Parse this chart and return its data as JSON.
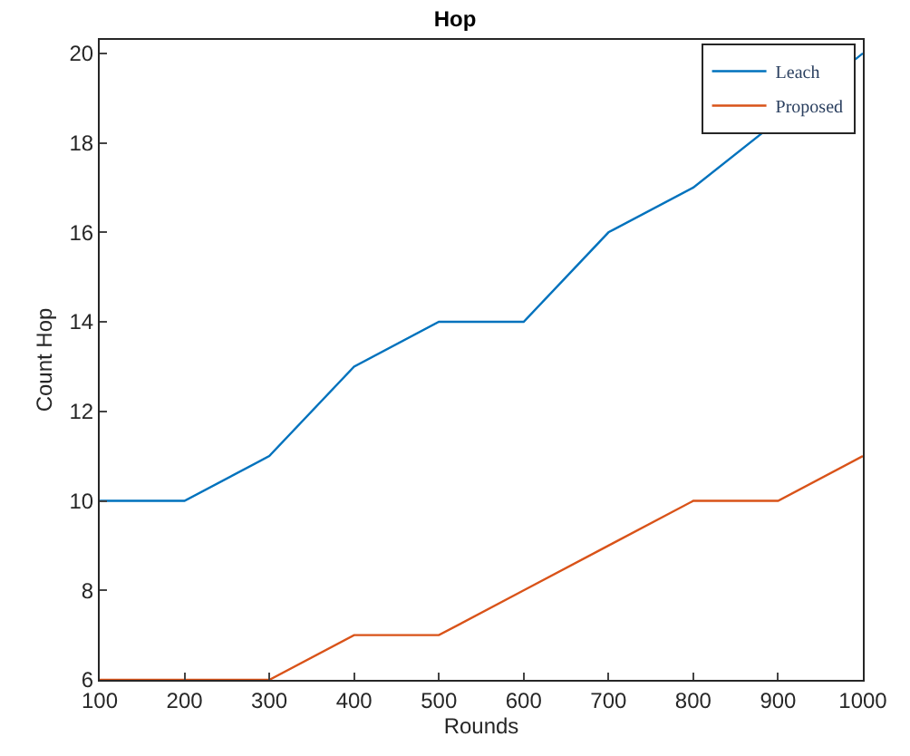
{
  "chart_data": {
    "type": "line",
    "title": "Hop",
    "xlabel": "Rounds",
    "ylabel": "Count Hop",
    "x": [
      100,
      200,
      300,
      400,
      500,
      600,
      700,
      800,
      900,
      1000
    ],
    "series": [
      {
        "name": "Leach",
        "color": "#0072bd",
        "values": [
          10,
          10,
          11,
          13,
          14,
          14,
          16,
          17,
          null,
          20
        ]
      },
      {
        "name": "Proposed",
        "color": "#d95319",
        "values": [
          6,
          6,
          6,
          7,
          7,
          8,
          9,
          10,
          10,
          11
        ]
      }
    ],
    "xlim": [
      100,
      1000
    ],
    "xticks": [
      100,
      200,
      300,
      400,
      500,
      600,
      700,
      800,
      900,
      1000
    ],
    "ylim": [
      6,
      20.3
    ],
    "yticks": [
      6,
      8,
      10,
      12,
      14,
      16,
      18,
      20
    ],
    "legend": "top right",
    "marker": "none",
    "line_style": "solid"
  }
}
